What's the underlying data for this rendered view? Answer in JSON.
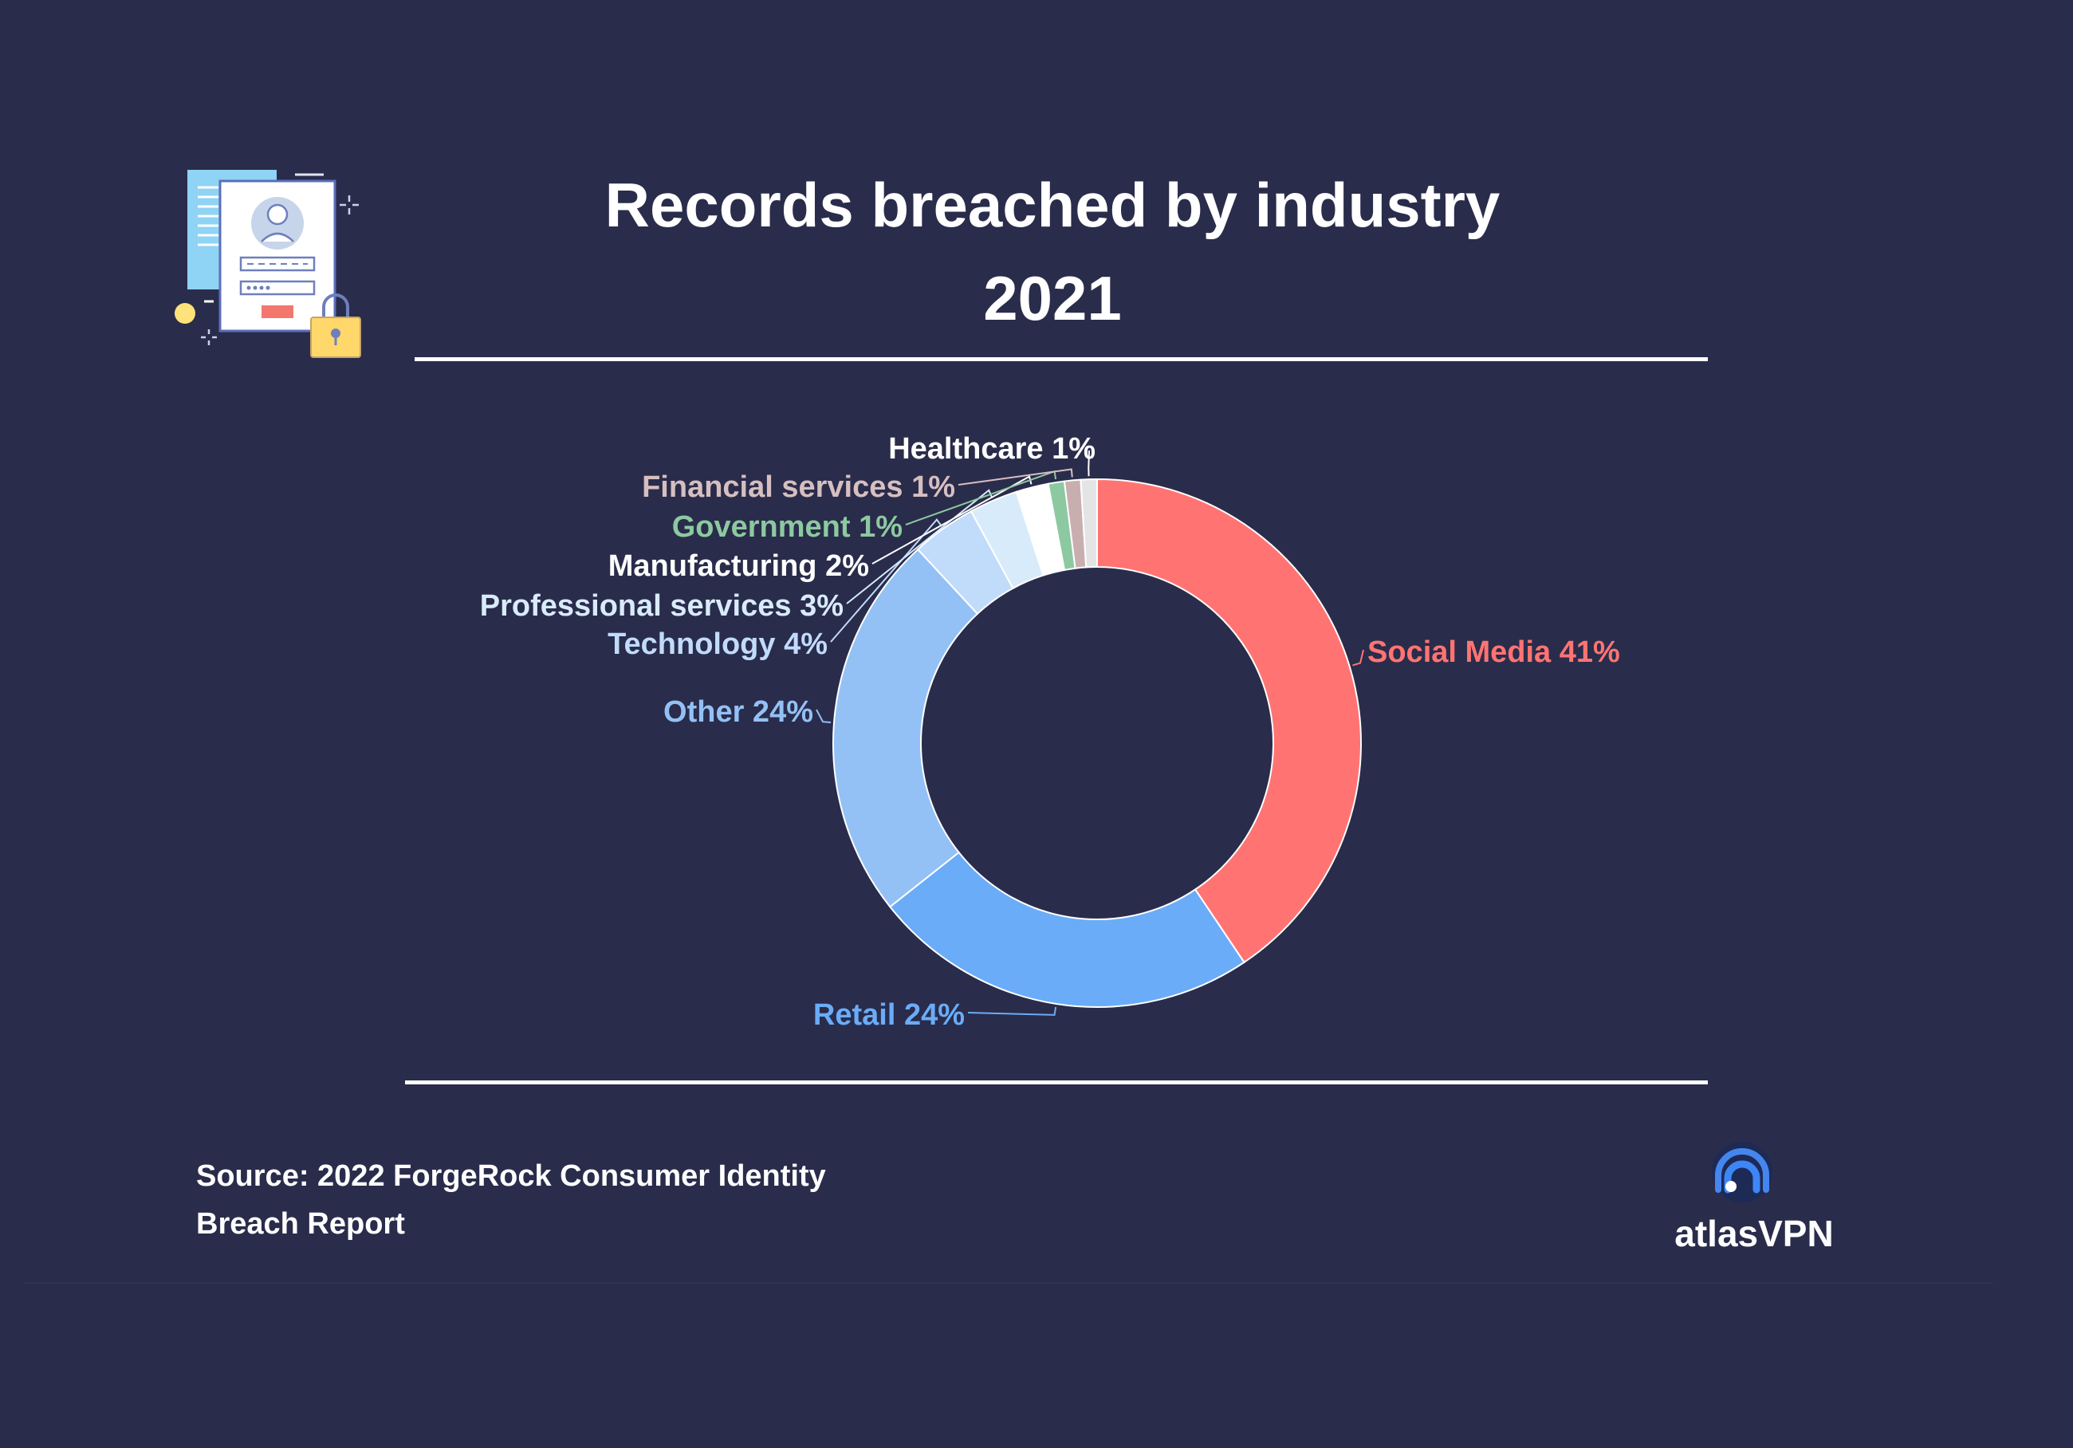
{
  "header": {
    "title_line1": "Records breached by industry",
    "title_line2": "2021"
  },
  "footer": {
    "source_line1": "Source: 2022 ForgeRock Consumer Identity",
    "source_line2": "Breach Report",
    "brand": "atlasVPN"
  },
  "icons": {
    "illustration": "identity-document-lock-icon",
    "brand_logo": "atlasvpn-logo-icon"
  },
  "chart_data": {
    "type": "pie",
    "donut": true,
    "title": "Records breached by industry 2021",
    "legend": "none",
    "slices": [
      {
        "name": "Social Media",
        "value": 41,
        "label": "Social Media 41%",
        "color": "#ff7472",
        "label_color": "#ff7472"
      },
      {
        "name": "Retail",
        "value": 24,
        "label": "Retail 24%",
        "color": "#6aacf8",
        "label_color": "#6aacf8"
      },
      {
        "name": "Other",
        "value": 24,
        "label": "Other 24%",
        "color": "#93c1f5",
        "label_color": "#93c1f5"
      },
      {
        "name": "Technology",
        "value": 4,
        "label": "Technology 4%",
        "color": "#c1dbfb",
        "label_color": "#c1dbfb"
      },
      {
        "name": "Professional services",
        "value": 3,
        "label": "Professional services 3%",
        "color": "#d8ebfa",
        "label_color": "#d8ebfa"
      },
      {
        "name": "Manufacturing",
        "value": 2,
        "label": "Manufacturing 2%",
        "color": "#ffffff",
        "label_color": "#ffffff"
      },
      {
        "name": "Government",
        "value": 1,
        "label": "Government 1%",
        "color": "#8dc9a0",
        "label_color": "#8dc9a0"
      },
      {
        "name": "Financial services",
        "value": 1,
        "label": "Financial services 1%",
        "color": "#c9aeb0",
        "label_color": "#d6bfc0"
      },
      {
        "name": "Healthcare",
        "value": 1,
        "label": "Healthcare 1%",
        "color": "#e4e4e4",
        "label_color": "#ffffff"
      }
    ]
  }
}
